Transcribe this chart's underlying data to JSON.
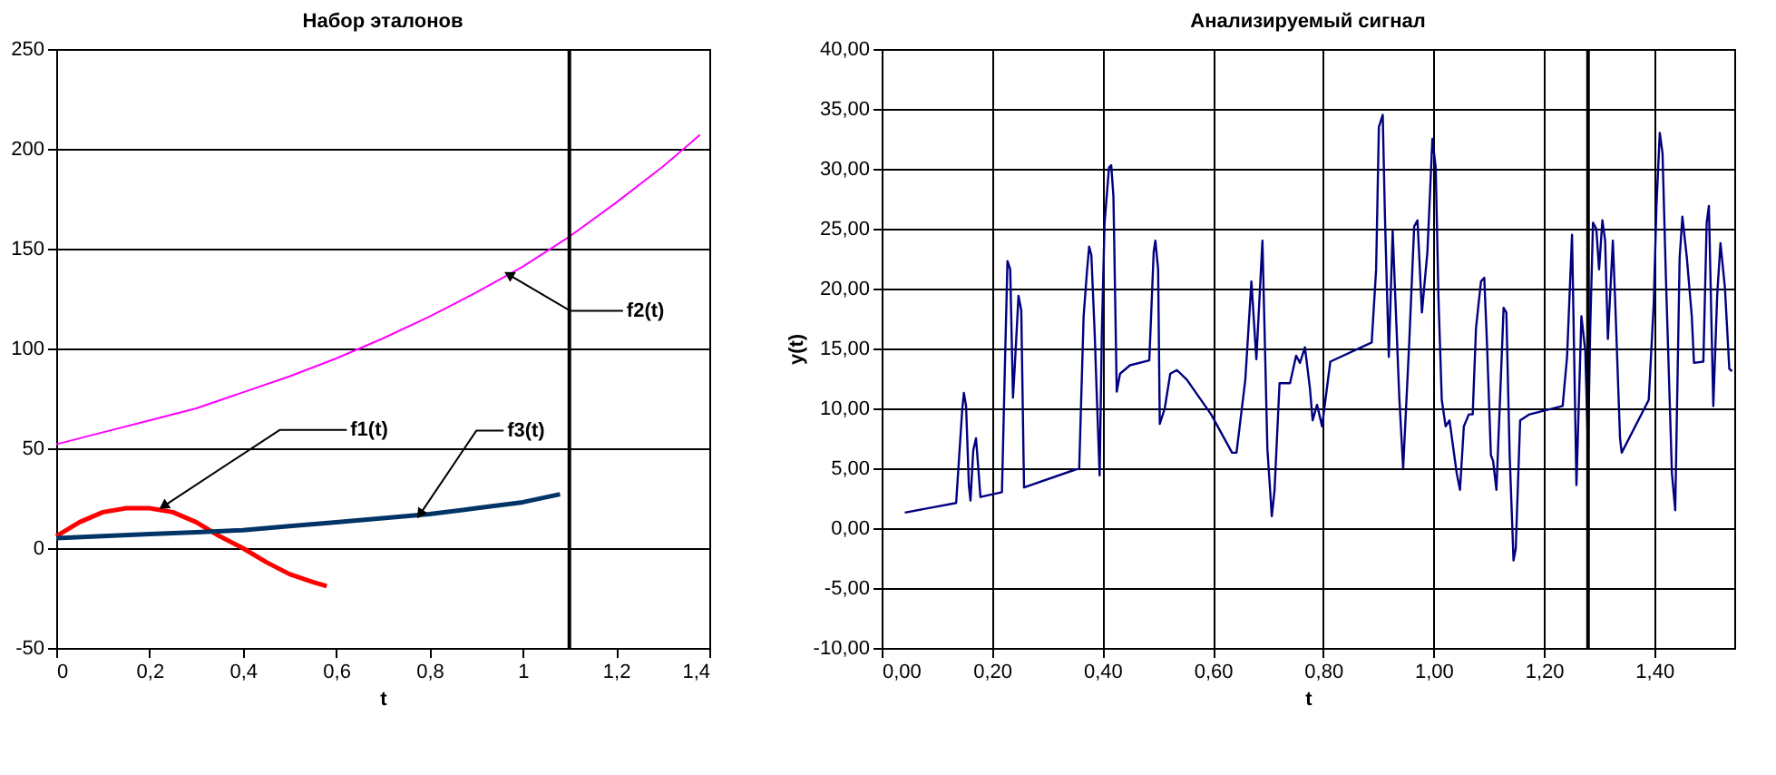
{
  "chart_data": [
    {
      "type": "line",
      "title": "Набор эталонов",
      "xlabel": "t",
      "xlim": [
        0,
        1.4
      ],
      "ylim": [
        -50,
        250
      ],
      "xticks": [
        0,
        {
          "value": 0.2,
          "label": "0,2"
        },
        {
          "value": 0.4,
          "label": "0,4"
        },
        {
          "value": 0.6,
          "label": "0,6"
        },
        {
          "value": 0.8,
          "label": "0,8"
        },
        1,
        {
          "value": 1.2,
          "label": "1,2"
        },
        {
          "value": 1.4,
          "label": "1,4"
        }
      ],
      "yticks": [
        -50,
        0,
        50,
        100,
        150,
        200,
        250
      ],
      "grid": "y",
      "marker": "none",
      "line_style": "solid",
      "series": [
        {
          "color": "#ff0000",
          "x": [
            0,
            0.05,
            0.1,
            0.15,
            0.2,
            0.25,
            0.3,
            0.35,
            0.4,
            0.45,
            0.5,
            0.55,
            0.58
          ],
          "values": [
            6,
            13,
            18,
            20,
            20,
            18,
            13,
            6,
            0,
            -7,
            -13,
            -17,
            -19
          ]
        },
        {
          "color": "#ff00ff",
          "x": [
            0,
            0.1,
            0.2,
            0.3,
            0.4,
            0.5,
            0.6,
            0.7,
            0.8,
            0.9,
            1.0,
            1.1,
            1.2,
            1.3,
            1.38
          ],
          "values": [
            52,
            58,
            64,
            70,
            78,
            86,
            95,
            105,
            116,
            128,
            141,
            156,
            173,
            191,
            207
          ]
        },
        {
          "color": "#003366",
          "x": [
            0,
            0.1,
            0.2,
            0.3,
            0.4,
            0.5,
            0.6,
            0.7,
            0.8,
            0.9,
            1.0,
            1.08
          ],
          "values": [
            5,
            6,
            7,
            8,
            9,
            11,
            13,
            15,
            17,
            20,
            23,
            27
          ]
        }
      ],
      "ref_lines": [
        {
          "axis": "x",
          "value": 1.1,
          "color": "#000000"
        }
      ],
      "annotations": [
        {
          "text": "f1(t)",
          "x": 0.23,
          "y": 21
        },
        {
          "text": "f2(t)",
          "x": 0.97,
          "y": 137
        },
        {
          "text": "f3(t)",
          "x": 0.78,
          "y": 17
        }
      ]
    },
    {
      "type": "line",
      "title": "Анализируемый сигнал",
      "xlabel": "t",
      "ylabel": "y(t)",
      "xlim": [
        0,
        1.545
      ],
      "ylim": [
        -10,
        40
      ],
      "xticks": [
        {
          "value": 0,
          "label": "0,00"
        },
        {
          "value": 0.2,
          "label": "0,20"
        },
        {
          "value": 0.4,
          "label": "0,40"
        },
        {
          "value": 0.6,
          "label": "0,60"
        },
        {
          "value": 0.8,
          "label": "0,80"
        },
        {
          "value": 1.0,
          "label": "1,00"
        },
        {
          "value": 1.2,
          "label": "1,20"
        },
        {
          "value": 1.4,
          "label": "1,40"
        }
      ],
      "yticks": [
        {
          "value": -10,
          "label": "-10,00"
        },
        {
          "value": -5,
          "label": "-5,00"
        },
        {
          "value": 0,
          "label": "0,00"
        },
        {
          "value": 5,
          "label": "5,00"
        },
        {
          "value": 10,
          "label": "10,00"
        },
        {
          "value": 15,
          "label": "15,00"
        },
        {
          "value": 20,
          "label": "20,00"
        },
        {
          "value": 25,
          "label": "25,00"
        },
        {
          "value": 30,
          "label": "30,00"
        },
        {
          "value": 35,
          "label": "35,00"
        },
        {
          "value": 40,
          "label": "40,00"
        }
      ],
      "grid": true,
      "marker": "none",
      "line_style": "solid",
      "series": [
        {
          "color": "#000080",
          "x": [
            0.042,
            0.135,
            0.146,
            0.149,
            0.153,
            0.158,
            0.161,
            0.166,
            0.171,
            0.175,
            0.179,
            0.218,
            0.224,
            0.228,
            0.233,
            0.238,
            0.241,
            0.248,
            0.253,
            0.258,
            0.358,
            0.366,
            0.372,
            0.376,
            0.38,
            0.386,
            0.39,
            0.395,
            0.399,
            0.404,
            0.412,
            0.416,
            0.42,
            0.426,
            0.432,
            0.45,
            0.485,
            0.493,
            0.496,
            0.501,
            0.504,
            0.513,
            0.523,
            0.535,
            0.553,
            0.597,
            0.635,
            0.643,
            0.659,
            0.67,
            0.679,
            0.69,
            0.699,
            0.707,
            0.712,
            0.721,
            0.74,
            0.751,
            0.758,
            0.767,
            0.776,
            0.781,
            0.789,
            0.798,
            0.813,
            0.888,
            0.896,
            0.901,
            0.908,
            0.912,
            0.919,
            0.926,
            0.938,
            0.945,
            0.956,
            0.965,
            0.971,
            0.979,
            0.989,
            0.998,
            1.004,
            1.009,
            1.015,
            1.022,
            1.029,
            1.042,
            1.048,
            1.055,
            1.064,
            1.071,
            1.077,
            1.086,
            1.092,
            1.097,
            1.104,
            1.108,
            1.114,
            1.124,
            1.127,
            1.132,
            1.138,
            1.145,
            1.149,
            1.157,
            1.174,
            1.234,
            1.242,
            1.251,
            1.255,
            1.259,
            1.268,
            1.275,
            1.28,
            1.284,
            1.289,
            1.295,
            1.3,
            1.306,
            1.311,
            1.316,
            1.325,
            1.329,
            1.338,
            1.341,
            1.39,
            1.399,
            1.404,
            1.41,
            1.415,
            1.421,
            1.432,
            1.438,
            1.446,
            1.451,
            1.459,
            1.468,
            1.472,
            1.489,
            1.495,
            1.499,
            1.507,
            1.514,
            1.52,
            1.528,
            1.536,
            1.541
          ],
          "values": [
            1.3,
            2.1,
            9.9,
            11.3,
            10.2,
            3.6,
            2.3,
            6.5,
            7.5,
            5.1,
            2.6,
            3.0,
            14.8,
            22.3,
            21.6,
            10.9,
            13.3,
            19.4,
            18.2,
            3.4,
            5.0,
            17.7,
            21.4,
            23.5,
            22.8,
            16.3,
            10.9,
            4.4,
            16.3,
            25.5,
            30.1,
            30.3,
            27.7,
            11.4,
            12.9,
            13.6,
            14.0,
            23.1,
            24.0,
            21.6,
            8.7,
            10.0,
            12.9,
            13.2,
            12.4,
            9.5,
            6.3,
            6.3,
            12.4,
            20.6,
            14.1,
            24.0,
            6.6,
            1.0,
            3.2,
            12.1,
            12.1,
            14.4,
            13.8,
            15.1,
            11.7,
            9.0,
            10.3,
            8.5,
            13.9,
            15.5,
            21.6,
            33.5,
            34.5,
            26.0,
            14.3,
            24.8,
            10.9,
            5.0,
            15.5,
            25.2,
            25.7,
            18.0,
            23.1,
            32.5,
            30.1,
            19.2,
            10.7,
            8.5,
            9.0,
            4.6,
            3.2,
            8.5,
            9.5,
            9.5,
            16.7,
            20.6,
            20.9,
            15.3,
            6.1,
            5.6,
            3.2,
            14.8,
            18.4,
            18.0,
            6.1,
            -2.7,
            -1.7,
            9.0,
            9.5,
            10.2,
            14.3,
            24.5,
            14.1,
            3.6,
            17.7,
            14.8,
            6.6,
            16.7,
            25.5,
            25.0,
            21.6,
            25.7,
            24.0,
            15.8,
            24.0,
            19.2,
            7.5,
            6.3,
            10.7,
            18.7,
            26.9,
            33.0,
            31.3,
            21.1,
            4.6,
            1.5,
            22.6,
            26.0,
            22.6,
            17.7,
            13.8,
            13.9,
            25.5,
            26.9,
            10.2,
            19.4,
            23.8,
            20.1,
            13.3,
            13.1
          ]
        }
      ],
      "ref_lines": [
        {
          "axis": "x",
          "value": 1.28,
          "color": "#000000"
        }
      ]
    }
  ]
}
